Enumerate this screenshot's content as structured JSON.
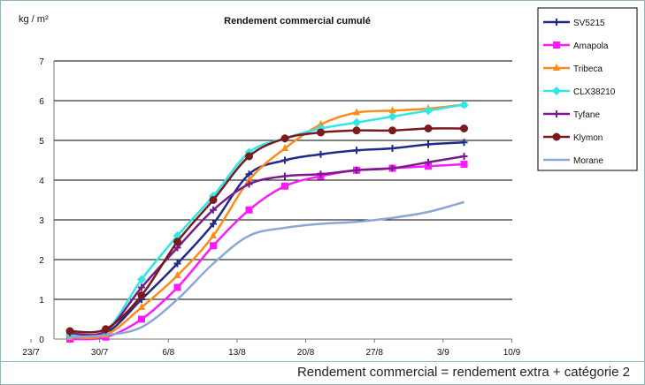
{
  "chart_data": {
    "type": "line",
    "title": "Rendement commercial cumulé",
    "ylabel": "kg / m²",
    "xlabel": "",
    "x_tick_labels": [
      "23/7",
      "30/7",
      "6/8",
      "13/8",
      "20/8",
      "27/8",
      "3/9",
      "10/9"
    ],
    "y_tick_labels": [
      "0",
      "1",
      "2",
      "3",
      "4",
      "5",
      "6",
      "7"
    ],
    "ylim": [
      0,
      7
    ],
    "grid": "horizontal",
    "legend_position": "top-right",
    "series": [
      {
        "name": "SV5215",
        "color": "#1f2a8c",
        "marker": "plus",
        "x": [
          0,
          1,
          2,
          3,
          4,
          5,
          6,
          7,
          8,
          9,
          10,
          11
        ],
        "y": [
          0.1,
          0.15,
          1.0,
          1.9,
          2.9,
          4.15,
          4.5,
          4.65,
          4.75,
          4.8,
          4.9,
          4.95
        ]
      },
      {
        "name": "Amapola",
        "color": "#ff1aff",
        "marker": "square",
        "x": [
          0,
          1,
          2,
          3,
          4,
          5,
          6,
          7,
          8,
          9,
          10,
          11
        ],
        "y": [
          0.0,
          0.05,
          0.5,
          1.3,
          2.35,
          3.25,
          3.85,
          4.1,
          4.25,
          4.3,
          4.35,
          4.4
        ]
      },
      {
        "name": "Tribeca",
        "color": "#ff8c1a",
        "marker": "triangle",
        "x": [
          0,
          1,
          2,
          3,
          4,
          5,
          6,
          7,
          8,
          9,
          10,
          11
        ],
        "y": [
          0.05,
          0.1,
          0.8,
          1.6,
          2.6,
          4.0,
          4.8,
          5.4,
          5.7,
          5.75,
          5.8,
          5.9
        ]
      },
      {
        "name": "CLX38210",
        "color": "#33e6e6",
        "marker": "diamond",
        "x": [
          0,
          1,
          2,
          3,
          4,
          5,
          6,
          7,
          8,
          9,
          10,
          11
        ],
        "y": [
          0.1,
          0.2,
          1.5,
          2.6,
          3.6,
          4.7,
          5.05,
          5.3,
          5.45,
          5.6,
          5.75,
          5.9
        ]
      },
      {
        "name": "Tyfane",
        "color": "#7a1a8c",
        "marker": "plus",
        "x": [
          0,
          1,
          2,
          3,
          4,
          5,
          6,
          7,
          8,
          9,
          10,
          11
        ],
        "y": [
          0.15,
          0.2,
          1.3,
          2.3,
          3.25,
          3.9,
          4.1,
          4.15,
          4.25,
          4.3,
          4.45,
          4.6
        ]
      },
      {
        "name": "Klymon",
        "color": "#7a1a1a",
        "marker": "circle",
        "x": [
          0,
          1,
          2,
          3,
          4,
          5,
          6,
          7,
          8,
          9,
          10,
          11
        ],
        "y": [
          0.2,
          0.25,
          1.1,
          2.45,
          3.5,
          4.6,
          5.05,
          5.2,
          5.25,
          5.25,
          5.3,
          5.3
        ]
      },
      {
        "name": "Morane",
        "color": "#8aa8d4",
        "marker": "none",
        "x": [
          0,
          1,
          2,
          3,
          4,
          5,
          6,
          7,
          8,
          9,
          10,
          11
        ],
        "y": [
          0.05,
          0.1,
          0.3,
          1.0,
          1.9,
          2.6,
          2.8,
          2.9,
          2.95,
          3.05,
          3.2,
          3.45
        ]
      }
    ]
  },
  "footer": {
    "caption": "Rendement commercial = rendement extra + catégorie 2"
  }
}
